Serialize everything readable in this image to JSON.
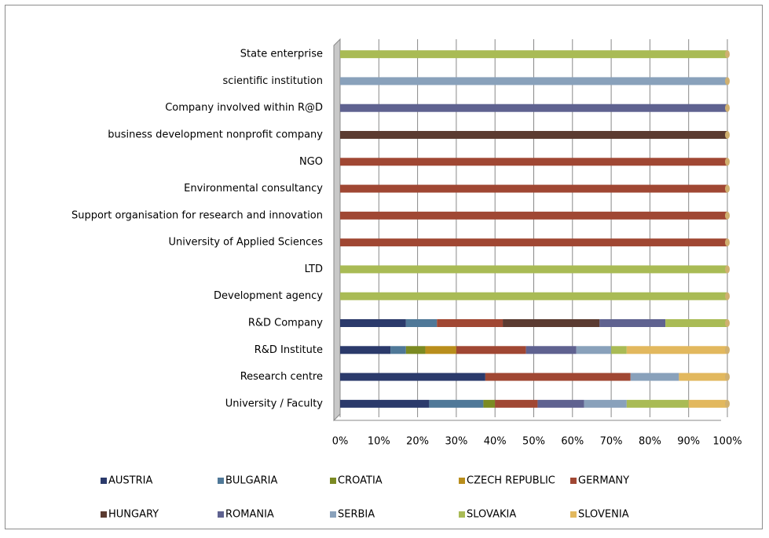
{
  "chart_data": {
    "type": "bar",
    "orientation": "horizontal",
    "stacked": true,
    "categories": [
      "State enterprise",
      "scientific institution",
      "Company involved within R@D",
      "business development nonprofit company",
      "NGO",
      "Environmental consultancy",
      "Support organisation for research and innovation",
      "University of Applied Sciences",
      "LTD",
      "Development agency",
      "R&D Company",
      "R&D Institute",
      "Research centre",
      "University / Faculty"
    ],
    "series": [
      {
        "name": "AUSTRIA",
        "color": "#2b3a6b",
        "values": [
          null,
          null,
          null,
          null,
          null,
          null,
          null,
          null,
          null,
          null,
          17,
          13,
          37.5,
          23
        ]
      },
      {
        "name": "BULGARIA",
        "color": "#4f7898",
        "values": [
          null,
          null,
          null,
          null,
          null,
          null,
          null,
          null,
          null,
          null,
          8,
          4,
          null,
          14
        ]
      },
      {
        "name": "CROATIA",
        "color": "#7b8a22",
        "values": [
          null,
          null,
          null,
          null,
          null,
          null,
          null,
          null,
          null,
          null,
          null,
          5,
          null,
          3
        ]
      },
      {
        "name": "CZECH REPUBLIC",
        "color": "#b98e1c",
        "values": [
          null,
          null,
          null,
          null,
          null,
          null,
          null,
          null,
          null,
          null,
          null,
          8,
          null,
          null
        ]
      },
      {
        "name": "GERMANY",
        "color": "#a04733",
        "values": [
          null,
          null,
          null,
          null,
          100,
          100,
          100,
          100,
          null,
          null,
          17,
          18,
          37.5,
          11
        ]
      },
      {
        "name": "HUNGARY",
        "color": "#5b3b31",
        "values": [
          null,
          null,
          null,
          100,
          null,
          null,
          null,
          null,
          null,
          null,
          25,
          null,
          null,
          null
        ]
      },
      {
        "name": "ROMANIA",
        "color": "#5f6290",
        "values": [
          null,
          null,
          100,
          null,
          null,
          null,
          null,
          null,
          null,
          null,
          17,
          13,
          null,
          12
        ]
      },
      {
        "name": "SERBIA",
        "color": "#89a1bb",
        "values": [
          null,
          100,
          null,
          null,
          null,
          null,
          null,
          null,
          null,
          null,
          null,
          9,
          12.5,
          11
        ]
      },
      {
        "name": "SLOVAKIA",
        "color": "#a9bb55",
        "values": [
          100,
          null,
          null,
          null,
          null,
          null,
          null,
          null,
          100,
          100,
          16,
          4,
          null,
          16
        ]
      },
      {
        "name": "SLOVENIA",
        "color": "#e2b85e",
        "values": [
          null,
          null,
          null,
          null,
          null,
          null,
          null,
          null,
          null,
          null,
          null,
          26,
          12.5,
          10
        ]
      }
    ],
    "xlim": [
      0,
      100
    ],
    "xticks": [
      {
        "value": 0,
        "label": "0%"
      },
      {
        "value": 10,
        "label": "10%"
      },
      {
        "value": 20,
        "label": "20%"
      },
      {
        "value": 30,
        "label": "30%"
      },
      {
        "value": 40,
        "label": "40%"
      },
      {
        "value": 50,
        "label": "50%"
      },
      {
        "value": 60,
        "label": "60%"
      },
      {
        "value": 70,
        "label": "70%"
      },
      {
        "value": 80,
        "label": "80%"
      },
      {
        "value": 90,
        "label": "90%"
      },
      {
        "value": 100,
        "label": "100%"
      }
    ],
    "grid": true,
    "legend": "bottom"
  }
}
